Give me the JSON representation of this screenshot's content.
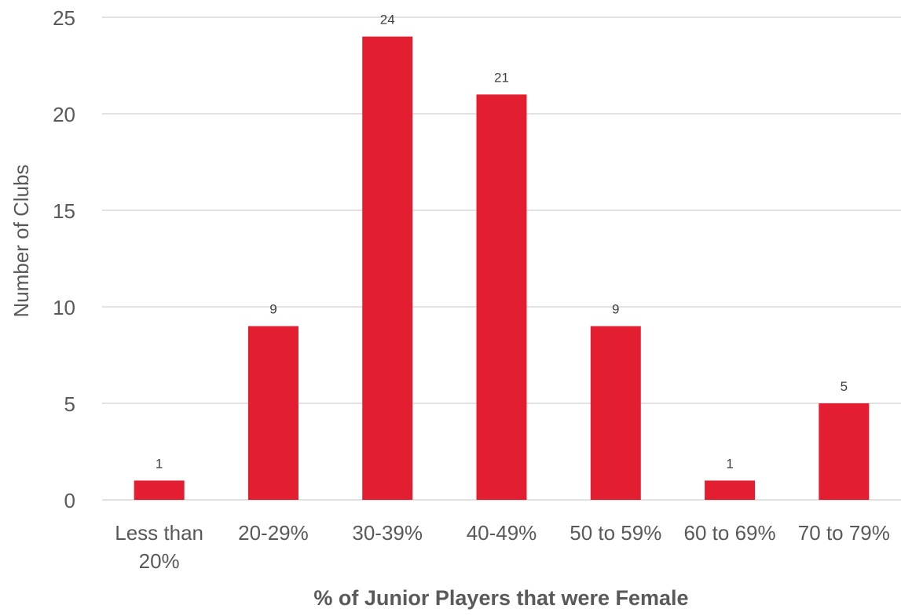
{
  "chart_data": {
    "type": "bar",
    "categories": [
      [
        "Less than",
        "20%"
      ],
      [
        "20-29%"
      ],
      [
        "30-39%"
      ],
      [
        "40-49%"
      ],
      [
        "50 to 59%"
      ],
      [
        "60 to 69%"
      ],
      [
        "70 to 79%"
      ]
    ],
    "values": [
      1,
      9,
      24,
      21,
      9,
      1,
      5
    ],
    "data_labels": [
      "1",
      "9",
      "24",
      "21",
      "9",
      "1",
      "5"
    ],
    "xlabel": "% of Junior Players that were Female",
    "ylabel": "Number of Clubs",
    "ylim": [
      0,
      25
    ],
    "yticks": [
      "0",
      "5",
      "10",
      "15",
      "20",
      "25"
    ],
    "grid": true,
    "colors": {
      "bar": "#e31e30",
      "grid": "#d9d9d9"
    }
  }
}
